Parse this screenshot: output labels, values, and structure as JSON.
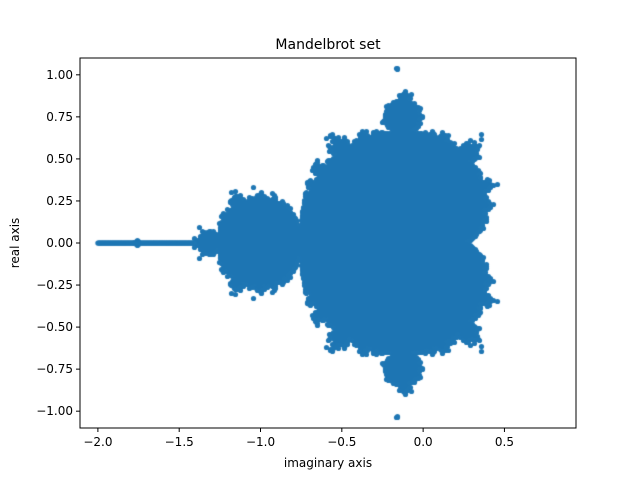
{
  "chart_data": {
    "type": "scatter",
    "title": "Mandelbrot set",
    "xlabel": "imaginary axis",
    "ylabel": "real axis",
    "xlim": [
      -2.11,
      0.94
    ],
    "ylim": [
      -1.1,
      1.1
    ],
    "xticks": [
      -2.0,
      -1.5,
      -1.0,
      -0.5,
      0.0,
      0.5
    ],
    "xtick_labels": [
      "−2.0",
      "−1.5",
      "−1.0",
      "−0.5",
      "0.0",
      "0.5"
    ],
    "yticks": [
      -1.0,
      -0.75,
      -0.5,
      -0.25,
      0.0,
      0.25,
      0.5,
      0.75,
      1.0
    ],
    "ytick_labels": [
      "−1.00",
      "−0.75",
      "−0.50",
      "−0.25",
      "0.00",
      "0.25",
      "0.50",
      "0.75",
      "1.00"
    ],
    "grid": false,
    "color": "#1f77b4",
    "max_iterations": 60
  }
}
